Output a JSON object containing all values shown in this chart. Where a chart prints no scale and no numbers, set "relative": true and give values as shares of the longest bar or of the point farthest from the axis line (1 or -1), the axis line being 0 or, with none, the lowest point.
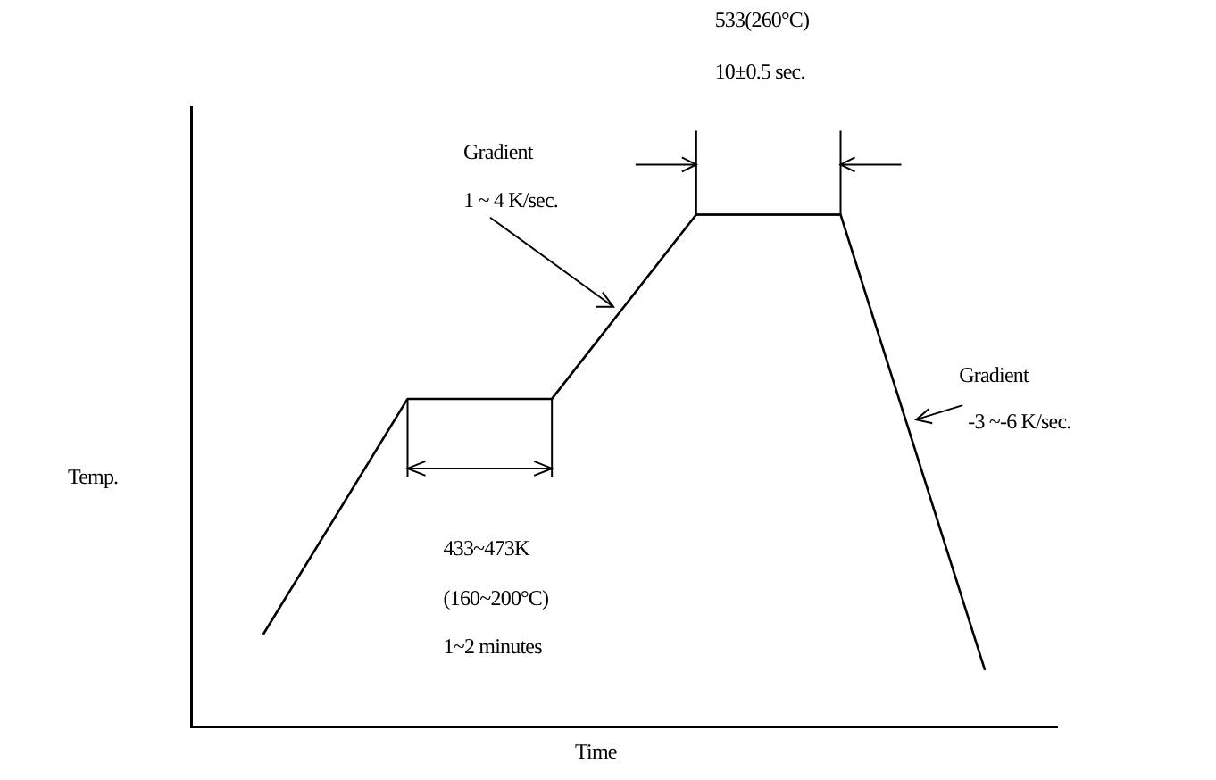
{
  "chart_data": {
    "type": "line",
    "relative": true,
    "xlabel": "Time",
    "ylabel": "Temp.",
    "grid": false,
    "legend": false,
    "marker": "none",
    "line_style": "solid",
    "categories": [
      null,
      null,
      null,
      null,
      null,
      null
    ],
    "values": [
      0.18,
      0.64,
      0.64,
      1,
      1,
      0.11
    ],
    "color": "#000000",
    "annotations": [
      "533(260°C)",
      "10±0.5 sec.",
      "Gradient",
      "1 ~ 4 K/sec.",
      "Gradient",
      "-3 ~-6 K/sec.",
      "433~473K",
      "(160~200°C)",
      "1~2 minutes"
    ]
  }
}
